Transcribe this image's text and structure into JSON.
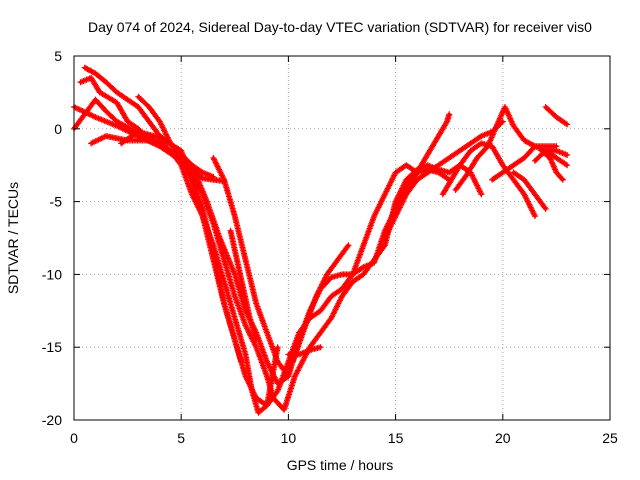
{
  "chart_data": {
    "type": "scatter",
    "title": "Day 074 of 2024, Sidereal Day-to-day VTEC variation (SDTVAR) for receiver vis0",
    "xlabel": "GPS time / hours",
    "ylabel": "SDTVAR / TECUs",
    "xlim": [
      0,
      25
    ],
    "ylim": [
      -20,
      5
    ],
    "xticks": [
      0,
      5,
      10,
      15,
      20,
      25
    ],
    "yticks": [
      -20,
      -15,
      -10,
      -5,
      0,
      5
    ],
    "grid": true,
    "marker": "+",
    "color": "#ff0000",
    "series": [
      {
        "points": [
          [
            0,
            1.5
          ],
          [
            1,
            0.8
          ],
          [
            2,
            0.2
          ],
          [
            3,
            -0.5
          ],
          [
            4,
            -1.2
          ],
          [
            5,
            -2.2
          ],
          [
            6,
            -3.4
          ],
          [
            7.0,
            -3.6
          ]
        ]
      },
      {
        "points": [
          [
            0,
            0
          ],
          [
            0.5,
            1.0
          ],
          [
            1,
            2.0
          ],
          [
            1.5,
            1.2
          ],
          [
            2,
            0.5
          ],
          [
            3,
            -0.3
          ],
          [
            4,
            -1.0
          ],
          [
            5,
            -2.0
          ],
          [
            6,
            -3.0
          ],
          [
            6.5,
            -3.3
          ]
        ]
      },
      {
        "points": [
          [
            0.3,
            3.2
          ],
          [
            0.8,
            3.5
          ],
          [
            1.2,
            2.5
          ],
          [
            2,
            1.8
          ],
          [
            2.5,
            0.5
          ],
          [
            3,
            0
          ],
          [
            3.5,
            -0.8
          ],
          [
            4.5,
            -1.5
          ],
          [
            5,
            -2.5
          ],
          [
            5.5,
            -4.5
          ],
          [
            6,
            -6
          ],
          [
            6.5,
            -8
          ],
          [
            7,
            -10.5
          ],
          [
            7.5,
            -13
          ],
          [
            8,
            -15.5
          ],
          [
            8.3,
            -18
          ],
          [
            8.6,
            -19.5
          ],
          [
            9,
            -19
          ],
          [
            9.5,
            -15
          ]
        ]
      },
      {
        "points": [
          [
            0.5,
            4.2
          ],
          [
            1,
            3.8
          ],
          [
            1.5,
            3.2
          ],
          [
            2,
            2.5
          ],
          [
            2.5,
            2.0
          ],
          [
            3,
            1.5
          ],
          [
            3.5,
            0.5
          ],
          [
            4,
            -0.5
          ],
          [
            4.5,
            -1.0
          ],
          [
            5,
            -2.0
          ],
          [
            5.5,
            -3.5
          ],
          [
            6,
            -5.5
          ],
          [
            6.5,
            -8.5
          ],
          [
            7,
            -12
          ],
          [
            7.5,
            -14.5
          ],
          [
            7.8,
            -16
          ]
        ]
      },
      {
        "points": [
          [
            0.8,
            -1.0
          ],
          [
            1.5,
            -0.5
          ],
          [
            2.5,
            -0.8
          ],
          [
            3.5,
            -0.8
          ],
          [
            4.5,
            -1.0
          ],
          [
            5.5,
            -2.5
          ],
          [
            6.2,
            -5
          ],
          [
            6.8,
            -7.5
          ],
          [
            7.5,
            -10
          ],
          [
            8,
            -12.5
          ],
          [
            8.5,
            -14
          ],
          [
            9,
            -16
          ],
          [
            9.5,
            -17.5
          ],
          [
            10,
            -17
          ],
          [
            10.5,
            -14.5
          ],
          [
            11,
            -12.5
          ],
          [
            11.5,
            -11
          ],
          [
            12,
            -10.2
          ],
          [
            12.5,
            -10
          ],
          [
            13,
            -10
          ],
          [
            13.5,
            -9.5
          ],
          [
            14,
            -9.2
          ],
          [
            14.5,
            -7
          ],
          [
            15,
            -5.5
          ],
          [
            15.5,
            -4
          ],
          [
            16,
            -3.0
          ],
          [
            16.5,
            -2.8
          ],
          [
            17,
            -3.0
          ],
          [
            17.5,
            -3.5
          ]
        ]
      },
      {
        "points": [
          [
            2.2,
            -1.0
          ],
          [
            3,
            -0.2
          ],
          [
            4,
            -0.6
          ],
          [
            5,
            -1.5
          ],
          [
            5.5,
            -3.5
          ],
          [
            6,
            -6
          ],
          [
            6.5,
            -9
          ],
          [
            7,
            -12
          ],
          [
            7.5,
            -14.5
          ],
          [
            8,
            -17
          ],
          [
            8.5,
            -18.5
          ],
          [
            9,
            -19
          ],
          [
            9.5,
            -18
          ],
          [
            10,
            -16
          ],
          [
            10.5,
            -14
          ],
          [
            11,
            -13
          ],
          [
            11.5,
            -12.5
          ],
          [
            12,
            -11.5
          ],
          [
            12.5,
            -11
          ],
          [
            13,
            -10
          ],
          [
            13.5,
            -8
          ],
          [
            14,
            -6
          ],
          [
            14.5,
            -4.5
          ],
          [
            15,
            -3
          ],
          [
            15.5,
            -2.5
          ],
          [
            16,
            -3
          ]
        ]
      },
      {
        "points": [
          [
            3,
            2.2
          ],
          [
            3.5,
            1.5
          ],
          [
            4,
            0.5
          ],
          [
            4.5,
            -1.0
          ],
          [
            5,
            -1.8
          ],
          [
            5.5,
            -3
          ],
          [
            6,
            -4.5
          ],
          [
            6.5,
            -6.5
          ],
          [
            7,
            -9
          ],
          [
            7.5,
            -11.5
          ],
          [
            8,
            -13.5
          ],
          [
            8.5,
            -15
          ],
          [
            9,
            -17
          ],
          [
            9.3,
            -18.5
          ],
          [
            9.8,
            -19.3
          ],
          [
            10.3,
            -17
          ],
          [
            11,
            -15
          ],
          [
            11.5,
            -14
          ],
          [
            12,
            -13
          ],
          [
            12.5,
            -11.5
          ],
          [
            13,
            -10.5
          ],
          [
            13.5,
            -10
          ],
          [
            14,
            -9
          ],
          [
            14.5,
            -8
          ],
          [
            15,
            -5
          ],
          [
            15.5,
            -3.5
          ],
          [
            16,
            -2.8
          ],
          [
            16.5,
            -2.5
          ],
          [
            17,
            -2.8
          ],
          [
            17.5,
            -3.0
          ],
          [
            18,
            -2.5
          ],
          [
            18.5,
            -3.0
          ],
          [
            19,
            -4.5
          ]
        ]
      },
      {
        "points": [
          [
            6.5,
            -2
          ],
          [
            7,
            -3.5
          ],
          [
            7.5,
            -6
          ],
          [
            8,
            -9
          ],
          [
            8.5,
            -12
          ],
          [
            9,
            -14
          ],
          [
            9.5,
            -16
          ],
          [
            10,
            -17
          ]
        ]
      },
      {
        "points": [
          [
            7.3,
            -7
          ],
          [
            7.6,
            -9
          ],
          [
            7.9,
            -11
          ],
          [
            8.2,
            -13
          ],
          [
            8.5,
            -14.5
          ]
        ]
      },
      {
        "points": [
          [
            10,
            -15.5
          ],
          [
            10.5,
            -15.5
          ],
          [
            11,
            -15.2
          ],
          [
            11.5,
            -15
          ]
        ]
      },
      {
        "points": [
          [
            10.2,
            -16
          ],
          [
            10.8,
            -13.5
          ],
          [
            11.3,
            -11.5
          ],
          [
            11.8,
            -10
          ],
          [
            12.3,
            -9
          ],
          [
            12.8,
            -8
          ]
        ]
      },
      {
        "points": [
          [
            14.5,
            -7.5
          ],
          [
            15,
            -6
          ],
          [
            15.5,
            -4.5
          ],
          [
            16,
            -3.5
          ],
          [
            16.5,
            -3.0
          ],
          [
            17,
            -2.5
          ],
          [
            17.5,
            -2
          ],
          [
            18,
            -1.5
          ],
          [
            18.5,
            -1.0
          ],
          [
            19,
            -0.5
          ],
          [
            19.5,
            -0.2
          ],
          [
            20,
            0.5
          ]
        ]
      },
      {
        "points": [
          [
            15.2,
            -5
          ],
          [
            15.8,
            -3.5
          ],
          [
            16.2,
            -2.5
          ],
          [
            16.6,
            -1.5
          ],
          [
            17,
            -0.5
          ],
          [
            17.4,
            0.5
          ],
          [
            17.5,
            1.0
          ]
        ]
      },
      {
        "points": [
          [
            17.2,
            -4.5
          ],
          [
            17.6,
            -3.5
          ],
          [
            18,
            -2.5
          ],
          [
            18.5,
            -1.5
          ],
          [
            19,
            -1.0
          ],
          [
            19.5,
            -1.2
          ],
          [
            20,
            -2.5
          ],
          [
            20.5,
            -3.5
          ],
          [
            21,
            -4.5
          ],
          [
            21.5,
            -6
          ]
        ]
      },
      {
        "points": [
          [
            17.8,
            -4.2
          ],
          [
            18.3,
            -3.2
          ],
          [
            18.8,
            -2.0
          ],
          [
            19.3,
            -1.2
          ],
          [
            19.8,
            0.5
          ],
          [
            20.1,
            1.5
          ],
          [
            20.5,
            0.2
          ],
          [
            21,
            -0.8
          ],
          [
            21.5,
            -1.2
          ],
          [
            22,
            -1.5
          ],
          [
            22.5,
            -1.5
          ],
          [
            23,
            -1.8
          ]
        ]
      },
      {
        "points": [
          [
            19.5,
            -3.5
          ],
          [
            20,
            -3.0
          ],
          [
            20.5,
            -2.5
          ],
          [
            21,
            -2.0
          ],
          [
            21.5,
            -1.2
          ],
          [
            22,
            -1.2
          ],
          [
            22.5,
            -1.2
          ]
        ]
      },
      {
        "points": [
          [
            20.5,
            -3.0
          ],
          [
            21,
            -3.5
          ],
          [
            21.5,
            -4.5
          ],
          [
            22,
            -5.5
          ]
        ]
      },
      {
        "points": [
          [
            21.8,
            -1.5
          ],
          [
            22.2,
            -2.0
          ],
          [
            22.5,
            -3.0
          ],
          [
            22.8,
            -3.5
          ]
        ]
      },
      {
        "points": [
          [
            22,
            1.5
          ],
          [
            22.5,
            0.8
          ],
          [
            23,
            0.3
          ]
        ]
      },
      {
        "points": [
          [
            21.5,
            -2.2
          ],
          [
            22,
            -1.5
          ],
          [
            22.5,
            -2.0
          ],
          [
            23,
            -2.5
          ]
        ]
      }
    ]
  }
}
